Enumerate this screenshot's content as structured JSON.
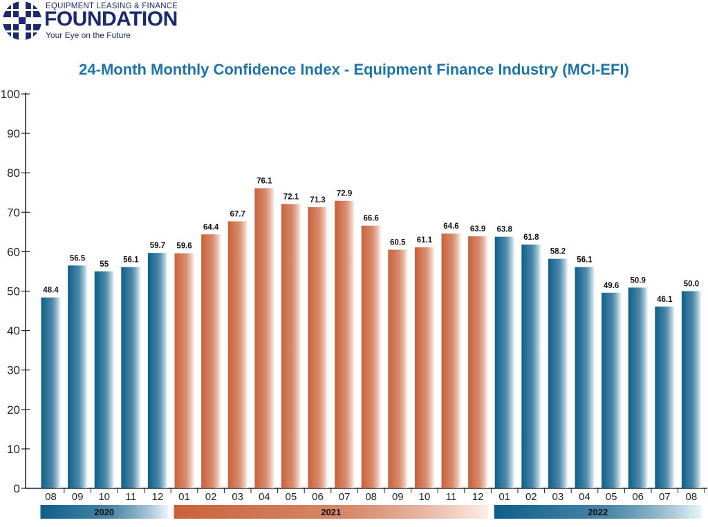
{
  "logo": {
    "line1": "EQUIPMENT LEASING & FINANCE",
    "line2": "FOUNDATION",
    "line3": "Your Eye on the Future"
  },
  "chart_data": {
    "type": "bar",
    "title": "24-Month Monthly Confidence Index - Equipment Finance Industry (MCI-EFI)",
    "xlabel": "",
    "ylabel": "",
    "ylim": [
      0,
      100
    ],
    "yticks": [
      0,
      10,
      20,
      30,
      40,
      50,
      60,
      70,
      80,
      90,
      100
    ],
    "grid": false,
    "categories": [
      "08",
      "09",
      "10",
      "11",
      "12",
      "01",
      "02",
      "03",
      "04",
      "05",
      "06",
      "07",
      "08",
      "09",
      "10",
      "11",
      "12",
      "01",
      "02",
      "03",
      "04",
      "05",
      "06",
      "07",
      "08"
    ],
    "values": [
      48.4,
      56.5,
      55,
      56.1,
      59.7,
      59.6,
      64.4,
      67.7,
      76.1,
      72.1,
      71.3,
      72.9,
      66.6,
      60.5,
      61.1,
      64.6,
      63.9,
      63.8,
      61.8,
      58.2,
      56.1,
      49.6,
      50.9,
      46.1,
      50.0
    ],
    "value_labels": [
      "48.4",
      "56.5",
      "55",
      "56.1",
      "59.7",
      "59.6",
      "64.4",
      "67.7",
      "76.1",
      "72.1",
      "71.3",
      "72.9",
      "66.6",
      "60.5",
      "61.1",
      "64.6",
      "63.9",
      "63.8",
      "61.8",
      "58.2",
      "56.1",
      "49.6",
      "50.9",
      "46.1",
      "50.0"
    ],
    "year_groups": [
      {
        "label": "2020",
        "start": 0,
        "end": 4,
        "color": "blue"
      },
      {
        "label": "2021",
        "start": 5,
        "end": 16,
        "color": "orange"
      },
      {
        "label": "2022",
        "start": 17,
        "end": 24,
        "color": "blue"
      }
    ],
    "colors": {
      "blue_dark": "#0e5f8a",
      "blue_light": "#eaf4fa",
      "orange_dark": "#c8623a",
      "orange_light": "#fbeee7",
      "axis": "#222222",
      "title": "#1d74a8"
    }
  }
}
